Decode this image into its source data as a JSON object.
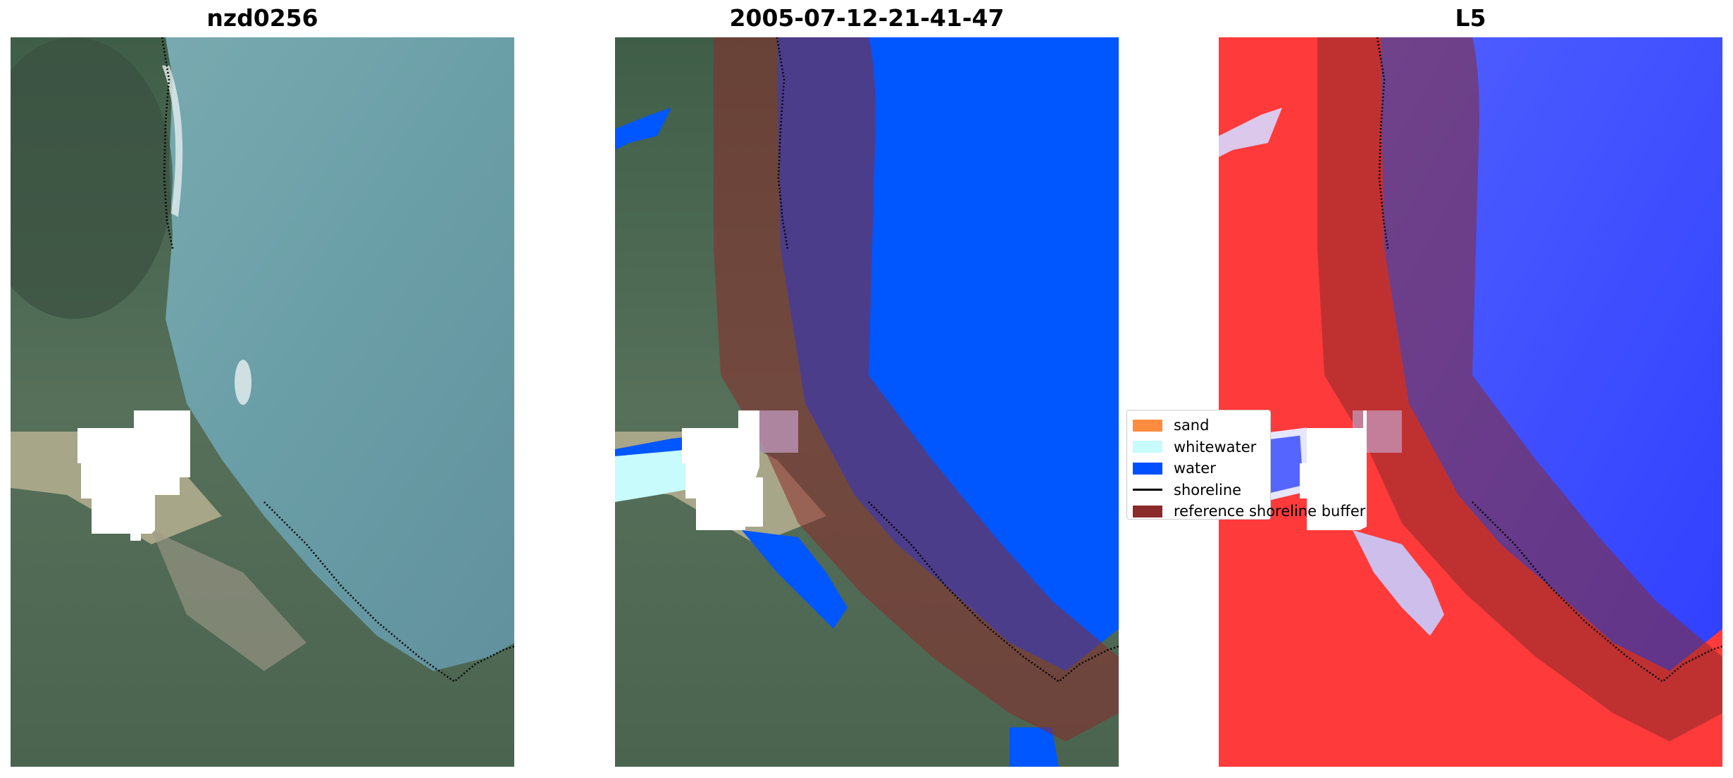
{
  "panels": [
    {
      "title": "nzd0256"
    },
    {
      "title": "2005-07-12-21-41-47"
    },
    {
      "title": "L5"
    }
  ],
  "legend": {
    "items": [
      {
        "label": "sand",
        "color": "#ff8c3f",
        "kind": "patch"
      },
      {
        "label": "whitewater",
        "color": "#c8fbfb",
        "kind": "patch"
      },
      {
        "label": "water",
        "color": "#0050ff",
        "kind": "patch"
      },
      {
        "label": "shoreline",
        "color": "#000000",
        "kind": "line"
      },
      {
        "label": "reference shoreline buffer",
        "color": "#8b2a2a",
        "kind": "patch"
      }
    ]
  },
  "colors": {
    "land": "#4b6a4c",
    "sea": "#6c9ca6",
    "cloud_mask": "#ffffff",
    "buffer": "#8b2a2a",
    "index_positive": "#ff2020",
    "index_negative": "#2030ff"
  }
}
